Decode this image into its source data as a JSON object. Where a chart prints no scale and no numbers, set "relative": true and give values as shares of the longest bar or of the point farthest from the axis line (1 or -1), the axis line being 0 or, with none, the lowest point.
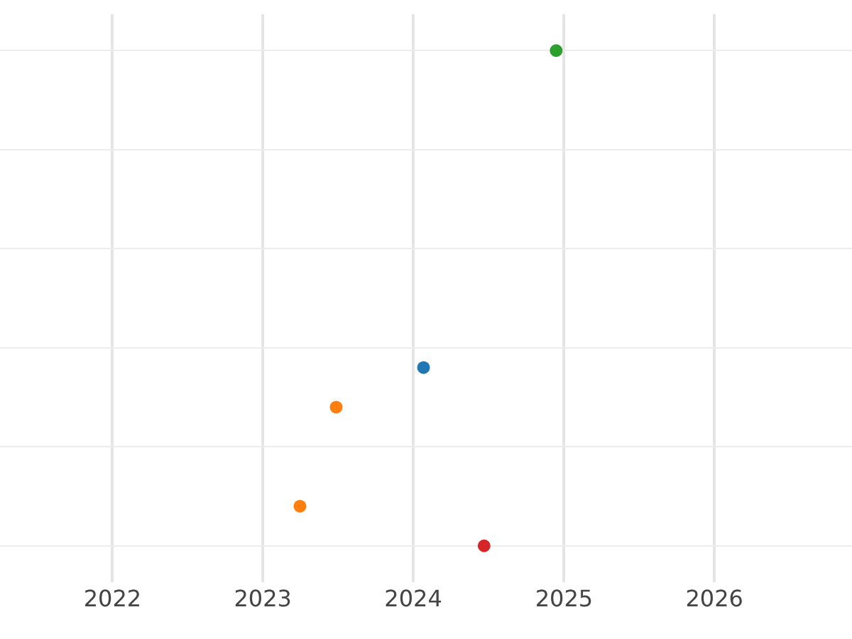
{
  "chart_data": {
    "type": "scatter",
    "relative": true,
    "grid": true,
    "marker": "circle",
    "xlim": [
      "2021-04-03",
      "2026-12-01"
    ],
    "xticks": [
      {
        "value": "2022-01-01",
        "label": "2022"
      },
      {
        "value": "2023-01-01",
        "label": "2023"
      },
      {
        "value": "2024-01-01",
        "label": "2024"
      },
      {
        "value": "2025-01-01",
        "label": "2025"
      },
      {
        "value": "2026-01-01",
        "label": "2026"
      }
    ],
    "series": [
      {
        "color": "#1f77b4",
        "x": [
          "2024-01-26"
        ],
        "values": [
          0.36
        ]
      },
      {
        "color": "#ff7f0e",
        "x": [
          "2023-06-28",
          "2023-04-01"
        ],
        "values": [
          0.28,
          0.08
        ]
      },
      {
        "color": "#2ca02c",
        "x": [
          "2024-12-13"
        ],
        "values": [
          1
        ]
      },
      {
        "color": "#d62728",
        "x": [
          "2024-06-21"
        ],
        "values": [
          0
        ]
      }
    ]
  }
}
